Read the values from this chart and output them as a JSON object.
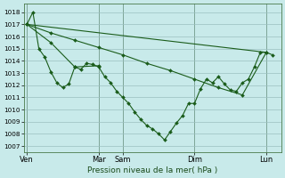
{
  "bg_color": "#c8eaea",
  "grid_color": "#9bbfbf",
  "line_color": "#1a5c1a",
  "marker_color": "#1a5c1a",
  "ylabel_ticks": [
    1007,
    1008,
    1009,
    1010,
    1011,
    1012,
    1013,
    1014,
    1015,
    1016,
    1017,
    1018
  ],
  "xlabel": "Pression niveau de la mer( hPa )",
  "xtick_labels": [
    "Ven",
    "Mar",
    "Sam",
    "Dim",
    "Lun"
  ],
  "xtick_positions": [
    0,
    48,
    64,
    112,
    160
  ],
  "total_x": 168,
  "series": [
    {
      "x": [
        0,
        4,
        8,
        12,
        16,
        20,
        24,
        28,
        32,
        36,
        40,
        44,
        48,
        52,
        56,
        60,
        64,
        68,
        72,
        76,
        80,
        84,
        88,
        92,
        96,
        100,
        104,
        108,
        112,
        116,
        120,
        124,
        128,
        132,
        136,
        140,
        144,
        148,
        152,
        156,
        160,
        164
      ],
      "y": [
        1017.0,
        1018.0,
        1015.0,
        1014.3,
        1013.1,
        1012.2,
        1011.8,
        1012.1,
        1013.5,
        1013.3,
        1013.8,
        1013.7,
        1013.5,
        1012.7,
        1012.2,
        1011.5,
        1011.0,
        1010.5,
        1009.8,
        1009.2,
        1008.7,
        1008.4,
        1008.0,
        1007.5,
        1008.2,
        1008.9,
        1009.5,
        1010.5,
        1010.5,
        1011.7,
        1012.5,
        1012.2,
        1012.7,
        1012.1,
        1011.6,
        1011.5,
        1012.2,
        1012.5,
        1013.5,
        1014.7,
        1014.7,
        1014.5
      ]
    },
    {
      "x": [
        0,
        16,
        32,
        48
      ],
      "y": [
        1017.0,
        1015.5,
        1013.5,
        1013.6
      ]
    },
    {
      "x": [
        0,
        16,
        32,
        48,
        64,
        80,
        96,
        112,
        128,
        144,
        160
      ],
      "y": [
        1017.0,
        1016.3,
        1015.7,
        1015.1,
        1014.5,
        1013.8,
        1013.2,
        1012.5,
        1011.8,
        1011.2,
        1014.7
      ]
    },
    {
      "x": [
        0,
        160
      ],
      "y": [
        1017.0,
        1014.7
      ]
    }
  ],
  "xlim": [
    -2,
    170
  ],
  "ylim": [
    1006.5,
    1018.7
  ]
}
